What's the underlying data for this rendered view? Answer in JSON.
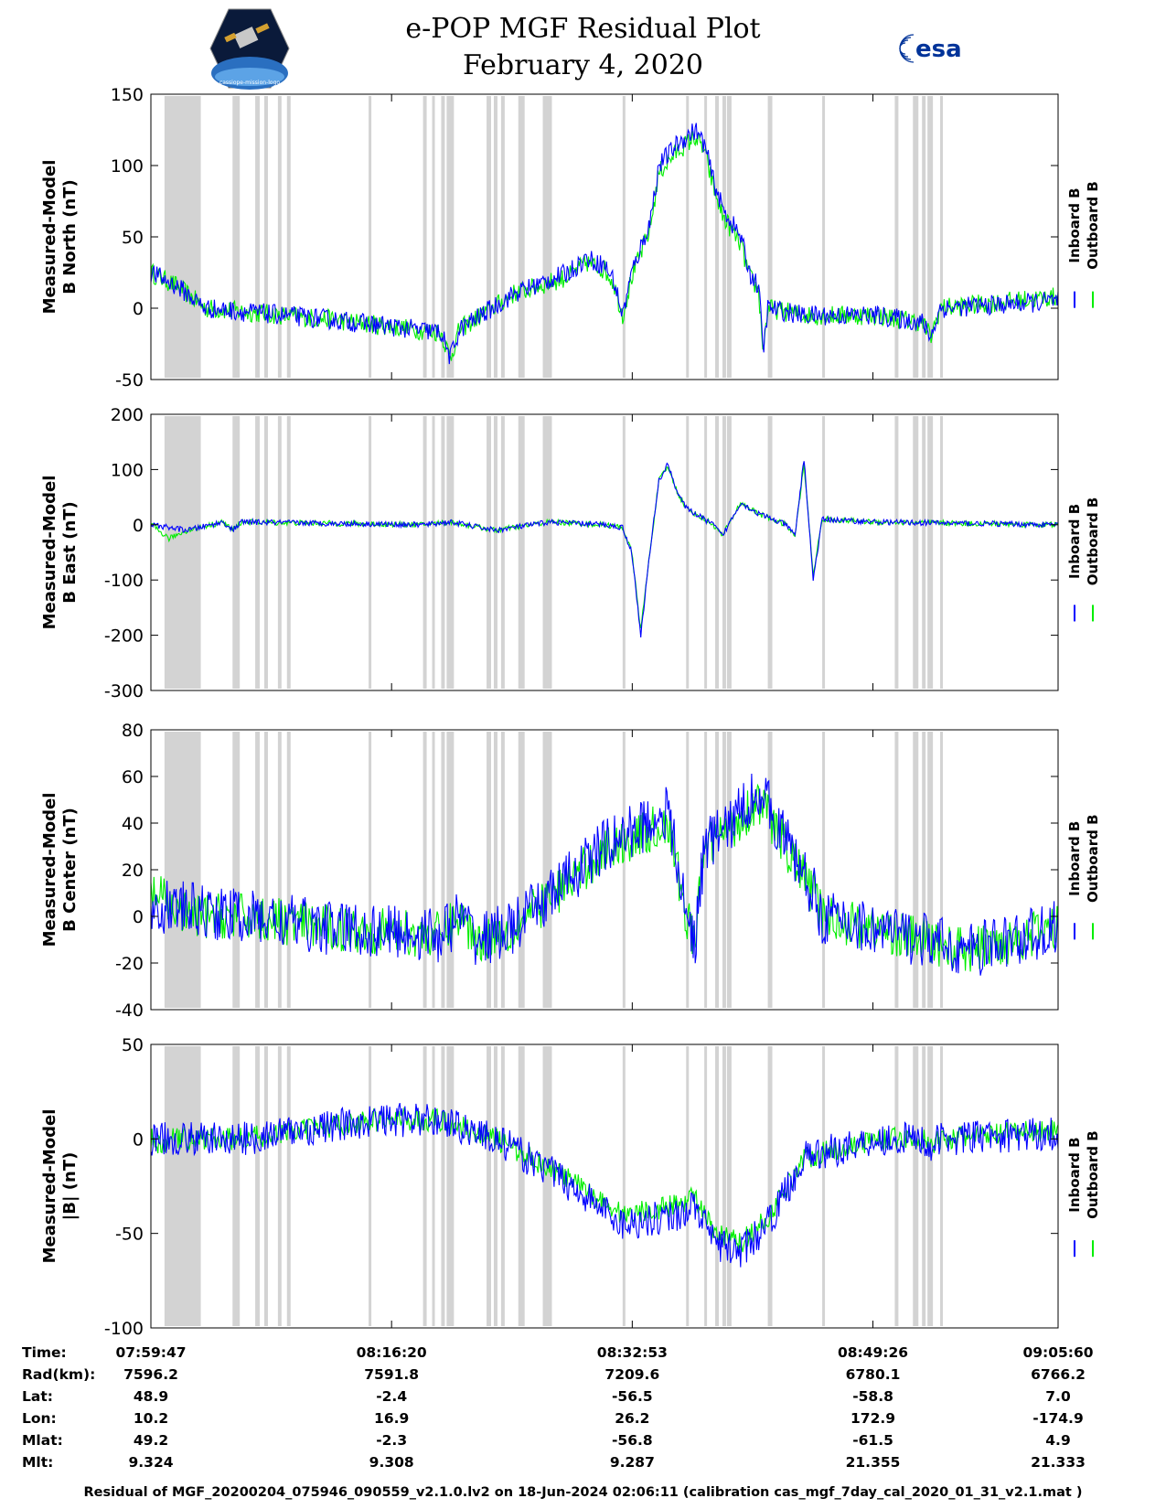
{
  "title": {
    "line1": "e-POP MGF Residual Plot",
    "line2": "February 4, 2020"
  },
  "logos": {
    "left": "cassiope-mission-logo",
    "right_text": "esa"
  },
  "colors": {
    "inboard": "#0000ff",
    "outboard": "#00ee00",
    "gap_band": "#d3d3d3",
    "axes": "#000000"
  },
  "chart_data": [
    {
      "type": "line",
      "ylabel": [
        "Measured-Model",
        "B North (nT)"
      ],
      "ylim": [
        -50,
        150
      ],
      "yticks": [
        -50,
        0,
        50,
        100,
        150
      ],
      "series": [
        {
          "name": "Inboard B",
          "color": "#0000ff",
          "profile": [
            [
              0,
              25
            ],
            [
              3,
              15
            ],
            [
              6,
              0
            ],
            [
              20,
              -8
            ],
            [
              32,
              -17
            ],
            [
              33,
              -35
            ],
            [
              34,
              -15
            ],
            [
              40,
              10
            ],
            [
              46,
              25
            ],
            [
              48,
              35
            ],
            [
              50,
              30
            ],
            [
              51,
              20
            ],
            [
              52,
              -5
            ],
            [
              53,
              25
            ],
            [
              55,
              60
            ],
            [
              56,
              100
            ],
            [
              58,
              115
            ],
            [
              60,
              125
            ],
            [
              61,
              115
            ],
            [
              62,
              90
            ],
            [
              63,
              70
            ],
            [
              65,
              50
            ],
            [
              66,
              25
            ],
            [
              67,
              15
            ],
            [
              67.5,
              -30
            ],
            [
              68,
              0
            ],
            [
              72,
              -5
            ],
            [
              80,
              -5
            ],
            [
              85,
              -10
            ],
            [
              86,
              -20
            ],
            [
              87,
              0
            ],
            [
              100,
              5
            ]
          ],
          "noise": 7
        },
        {
          "name": "Outboard B",
          "color": "#00ee00",
          "profile": [
            [
              0,
              25
            ],
            [
              3,
              15
            ],
            [
              6,
              0
            ],
            [
              20,
              -8
            ],
            [
              32,
              -17
            ],
            [
              33,
              -35
            ],
            [
              34,
              -15
            ],
            [
              40,
              10
            ],
            [
              46,
              22
            ],
            [
              48,
              32
            ],
            [
              50,
              27
            ],
            [
              51,
              18
            ],
            [
              52,
              -5
            ],
            [
              53,
              22
            ],
            [
              55,
              55
            ],
            [
              56,
              95
            ],
            [
              58,
              110
            ],
            [
              60,
              120
            ],
            [
              61,
              110
            ],
            [
              62,
              85
            ],
            [
              63,
              65
            ],
            [
              65,
              45
            ],
            [
              66,
              22
            ],
            [
              67,
              12
            ],
            [
              67.5,
              -30
            ],
            [
              68,
              0
            ],
            [
              72,
              -5
            ],
            [
              80,
              -5
            ],
            [
              85,
              -10
            ],
            [
              86,
              -20
            ],
            [
              87,
              0
            ],
            [
              100,
              8
            ]
          ],
          "noise": 7
        }
      ]
    },
    {
      "type": "line",
      "ylabel": [
        "Measured-Model",
        "B East (nT)"
      ],
      "ylim": [
        -300,
        200
      ],
      "yticks": [
        -300,
        -200,
        -100,
        0,
        100,
        200
      ],
      "series": [
        {
          "name": "Inboard B",
          "color": "#0000ff",
          "profile": [
            [
              0,
              0
            ],
            [
              4,
              -10
            ],
            [
              8,
              5
            ],
            [
              9,
              -10
            ],
            [
              10,
              5
            ],
            [
              30,
              0
            ],
            [
              33,
              5
            ],
            [
              38,
              -10
            ],
            [
              44,
              5
            ],
            [
              50,
              0
            ],
            [
              52,
              -5
            ],
            [
              53,
              -50
            ],
            [
              54,
              -200
            ],
            [
              55,
              -50
            ],
            [
              56,
              80
            ],
            [
              57,
              110
            ],
            [
              58,
              60
            ],
            [
              59,
              30
            ],
            [
              60,
              20
            ],
            [
              62,
              0
            ],
            [
              63,
              -20
            ],
            [
              65,
              40
            ],
            [
              67,
              20
            ],
            [
              70,
              0
            ],
            [
              71,
              -20
            ],
            [
              72,
              120
            ],
            [
              73,
              -100
            ],
            [
              74,
              10
            ],
            [
              80,
              5
            ],
            [
              100,
              0
            ]
          ],
          "noise": 5
        },
        {
          "name": "Outboard B",
          "color": "#00ee00",
          "profile": [
            [
              0,
              0
            ],
            [
              2,
              -25
            ],
            [
              4,
              -10
            ],
            [
              8,
              5
            ],
            [
              9,
              -10
            ],
            [
              10,
              5
            ],
            [
              30,
              0
            ],
            [
              33,
              5
            ],
            [
              38,
              -10
            ],
            [
              44,
              5
            ],
            [
              50,
              0
            ],
            [
              52,
              -5
            ],
            [
              53,
              -50
            ],
            [
              54,
              -190
            ],
            [
              55,
              -50
            ],
            [
              56,
              80
            ],
            [
              57,
              105
            ],
            [
              58,
              60
            ],
            [
              59,
              30
            ],
            [
              60,
              20
            ],
            [
              62,
              0
            ],
            [
              63,
              -20
            ],
            [
              65,
              40
            ],
            [
              67,
              20
            ],
            [
              70,
              0
            ],
            [
              71,
              -20
            ],
            [
              72,
              110
            ],
            [
              73,
              -90
            ],
            [
              74,
              10
            ],
            [
              80,
              5
            ],
            [
              100,
              0
            ]
          ],
          "noise": 5
        }
      ]
    },
    {
      "type": "line",
      "ylabel": [
        "Measured-Model",
        "B Center (nT)"
      ],
      "ylim": [
        -40,
        80
      ],
      "yticks": [
        -40,
        -20,
        0,
        20,
        40,
        60,
        80
      ],
      "series": [
        {
          "name": "Inboard B",
          "color": "#0000ff",
          "profile": [
            [
              0,
              5
            ],
            [
              10,
              0
            ],
            [
              20,
              -5
            ],
            [
              32,
              -8
            ],
            [
              34,
              0
            ],
            [
              36,
              -10
            ],
            [
              40,
              -5
            ],
            [
              50,
              30
            ],
            [
              57,
              45
            ],
            [
              59,
              0
            ],
            [
              60,
              -10
            ],
            [
              61,
              30
            ],
            [
              64,
              40
            ],
            [
              67,
              55
            ],
            [
              73,
              10
            ],
            [
              74,
              0
            ],
            [
              85,
              -10
            ],
            [
              90,
              -15
            ],
            [
              100,
              -5
            ]
          ],
          "noise": 12
        },
        {
          "name": "Outboard B",
          "color": "#00ee00",
          "profile": [
            [
              0,
              10
            ],
            [
              2,
              5
            ],
            [
              4,
              0
            ],
            [
              10,
              0
            ],
            [
              20,
              -5
            ],
            [
              32,
              -8
            ],
            [
              34,
              0
            ],
            [
              36,
              -10
            ],
            [
              40,
              -5
            ],
            [
              50,
              28
            ],
            [
              57,
              40
            ],
            [
              59,
              0
            ],
            [
              60,
              -10
            ],
            [
              61,
              30
            ],
            [
              64,
              38
            ],
            [
              67,
              50
            ],
            [
              73,
              10
            ],
            [
              74,
              0
            ],
            [
              85,
              -10
            ],
            [
              90,
              -15
            ],
            [
              100,
              -5
            ]
          ],
          "noise": 10
        }
      ]
    },
    {
      "type": "line",
      "ylabel": [
        "Measured-Model",
        "|B| (nT)"
      ],
      "ylim": [
        -100,
        50
      ],
      "yticks": [
        -100,
        -50,
        0,
        50
      ],
      "series": [
        {
          "name": "Inboard B",
          "color": "#0000ff",
          "profile": [
            [
              0,
              0
            ],
            [
              10,
              0
            ],
            [
              25,
              10
            ],
            [
              32,
              10
            ],
            [
              38,
              0
            ],
            [
              45,
              -20
            ],
            [
              52,
              -45
            ],
            [
              58,
              -40
            ],
            [
              60,
              -35
            ],
            [
              62,
              -55
            ],
            [
              65,
              -60
            ],
            [
              68,
              -45
            ],
            [
              72,
              -10
            ],
            [
              76,
              -5
            ],
            [
              80,
              0
            ],
            [
              85,
              0
            ],
            [
              86,
              -5
            ],
            [
              87,
              0
            ],
            [
              100,
              3
            ]
          ],
          "noise": 9
        },
        {
          "name": "Outboard B",
          "color": "#00ee00",
          "profile": [
            [
              0,
              0
            ],
            [
              1,
              -5
            ],
            [
              2,
              0
            ],
            [
              10,
              0
            ],
            [
              25,
              10
            ],
            [
              32,
              10
            ],
            [
              38,
              0
            ],
            [
              45,
              -18
            ],
            [
              52,
              -40
            ],
            [
              58,
              -35
            ],
            [
              60,
              -30
            ],
            [
              62,
              -50
            ],
            [
              65,
              -55
            ],
            [
              68,
              -42
            ],
            [
              72,
              -10
            ],
            [
              76,
              -5
            ],
            [
              80,
              0
            ],
            [
              85,
              0
            ],
            [
              86,
              -5
            ],
            [
              87,
              0
            ],
            [
              100,
              5
            ]
          ],
          "noise": 6
        }
      ]
    }
  ],
  "legend": {
    "inboard": "Inboard B",
    "outboard": "Outboard B"
  },
  "gap_bands": [
    [
      1.5,
      5.5
    ],
    [
      9,
      9.8
    ],
    [
      11.5,
      12
    ],
    [
      12.5,
      12.9
    ],
    [
      14,
      14.4
    ],
    [
      15,
      15.4
    ],
    [
      24,
      24.3
    ],
    [
      30,
      30.4
    ],
    [
      31,
      31.3
    ],
    [
      32,
      32.4
    ],
    [
      32.6,
      33.4
    ],
    [
      37,
      37.5
    ],
    [
      37.8,
      38.2
    ],
    [
      38.6,
      39
    ],
    [
      40.5,
      41.2
    ],
    [
      43.2,
      44.2
    ],
    [
      52,
      52.3
    ],
    [
      59,
      59.3
    ],
    [
      61,
      61.3
    ],
    [
      62.2,
      62.6
    ],
    [
      63,
      63.4
    ],
    [
      63.5,
      64
    ],
    [
      68,
      68.5
    ],
    [
      74,
      74.3
    ],
    [
      82,
      82.4
    ],
    [
      84,
      84.6
    ],
    [
      85,
      85.4
    ],
    [
      85.6,
      86.2
    ],
    [
      87,
      87.3
    ]
  ],
  "ephemeris": {
    "labels": [
      "Time:",
      "Rad(km):",
      "Lat:",
      "Lon:",
      "Mlat:",
      "Mlt:"
    ],
    "columns": [
      [
        "07:59:47",
        "7596.2",
        "48.9",
        "10.2",
        "49.2",
        "9.324"
      ],
      [
        "08:16:20",
        "7591.8",
        "-2.4",
        "16.9",
        "-2.3",
        "9.308"
      ],
      [
        "08:32:53",
        "7209.6",
        "-56.5",
        "26.2",
        "-56.8",
        "9.287"
      ],
      [
        "08:49:26",
        "6780.1",
        "-58.8",
        "172.9",
        "-61.5",
        "21.355"
      ],
      [
        "09:05:60",
        "6766.2",
        "7.0",
        "-174.9",
        "4.9",
        "21.333"
      ]
    ]
  },
  "footer": "Residual of MGF_20200204_075946_090559_v2.1.0.lv2 on 18-Jun-2024 02:06:11 (calibration cas_mgf_7day_cal_2020_01_31_v2.1.mat )"
}
